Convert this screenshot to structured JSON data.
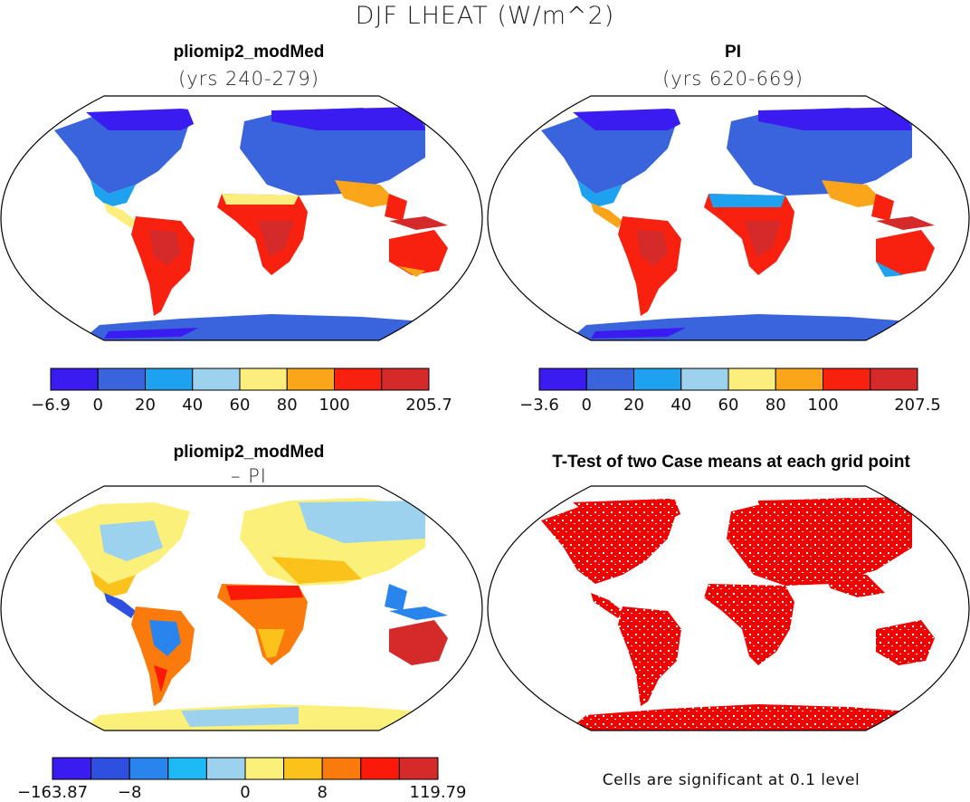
{
  "figure": {
    "title": "DJF LHEAT (W/m^2)"
  },
  "panels": {
    "top_left": {
      "title": "pliomip2_modMed",
      "subtitle": "(yrs 240-279)",
      "colorbar": {
        "colors": [
          "#3a1cf0",
          "#3a64dc",
          "#1ea2f0",
          "#9cd2ee",
          "#fcee7c",
          "#fba61a",
          "#f8200e",
          "#d42a2a"
        ],
        "labels": [
          "-6.9",
          "0",
          "20",
          "40",
          "60",
          "80",
          "100",
          "205.7"
        ]
      }
    },
    "top_right": {
      "title": "PI",
      "subtitle": "(yrs 620-669)",
      "colorbar": {
        "colors": [
          "#3a1cf0",
          "#3a64dc",
          "#1ea2f0",
          "#9cd2ee",
          "#fcee7c",
          "#fba61a",
          "#f8200e",
          "#d42a2a"
        ],
        "labels": [
          "-3.6",
          "0",
          "20",
          "40",
          "60",
          "80",
          "100",
          "207.5"
        ]
      }
    },
    "bottom_left": {
      "title": "pliomip2_modMed",
      "subtitle": "– PI",
      "colorbar": {
        "colors": [
          "#3a1cf0",
          "#2f4fe0",
          "#2a84ee",
          "#1ebaf5",
          "#9cd2ee",
          "#fbf07a",
          "#fbc21c",
          "#fb7a0c",
          "#fb1a0a",
          "#d42a2a"
        ],
        "labels": [
          "-163.87",
          "-8",
          "0",
          "8",
          "119.79"
        ]
      }
    },
    "bottom_right": {
      "title": "T-Test of two Case means at each grid point",
      "footnote": "Cells are significant at 0.1 level"
    }
  },
  "map_colors": {
    "cold_deep": "#3a1cf0",
    "cold": "#3a64dc",
    "cool": "#1ea2f0",
    "light": "#9cd2ee",
    "yellow": "#fcee7c",
    "orange": "#fba61a",
    "red": "#f8200e",
    "darkred": "#d42a2a",
    "significant": "#f00000"
  }
}
